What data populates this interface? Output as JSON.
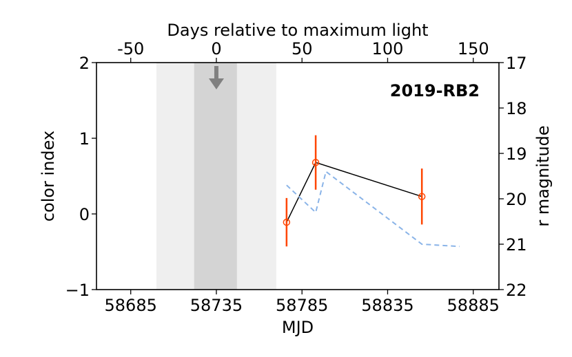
{
  "chart_data": {
    "type": "line",
    "title": "2019-RB2",
    "xlabel": "MJD",
    "ylabel": "color index",
    "top_xlabel": "Days relative to maximum light",
    "right_ylabel": "r magnitude",
    "xlim": [
      58665,
      58900
    ],
    "ylim": [
      -1,
      2
    ],
    "right_ylim": [
      22,
      17
    ],
    "max_light_mjd": 58735,
    "x_ticks": [
      58685,
      58735,
      58785,
      58835,
      58885
    ],
    "x_tick_labels": [
      "58685",
      "58735",
      "58785",
      "58835",
      "58885"
    ],
    "y_ticks": [
      -1,
      0,
      1,
      2
    ],
    "y_tick_labels": [
      "−1",
      "0",
      "1",
      "2"
    ],
    "top_ticks": [
      -50,
      0,
      50,
      100,
      150
    ],
    "top_tick_labels": [
      "-50",
      "0",
      "50",
      "100",
      "150"
    ],
    "right_ticks": [
      17,
      18,
      19,
      20,
      21,
      22
    ],
    "right_tick_labels": [
      "17",
      "18",
      "19",
      "20",
      "21",
      "22"
    ],
    "shaded_regions": [
      {
        "name": "light band",
        "x_range": [
          58700,
          58770
        ],
        "color": "#efefef"
      },
      {
        "name": "dark band",
        "x_range": [
          58722,
          58747
        ],
        "color": "#d4d4d4"
      }
    ],
    "arrow": {
      "name": "upper limit",
      "x": 58735,
      "color": "#808080"
    },
    "series": [
      {
        "axis": "left",
        "style": "line-with-error-bars",
        "line_color": "#000000",
        "marker_color": "#ff4500",
        "x": [
          58776,
          58793,
          58855
        ],
        "y": [
          -0.11,
          0.68,
          0.23
        ],
        "yerr": [
          0.32,
          0.36,
          0.37
        ]
      },
      {
        "axis": "right",
        "style": "dashed",
        "line_color": "#8ab4e8",
        "x": [
          58776,
          58793,
          58799,
          58855,
          58877
        ],
        "y": [
          19.7,
          20.3,
          19.4,
          21.0,
          21.05
        ]
      }
    ]
  }
}
